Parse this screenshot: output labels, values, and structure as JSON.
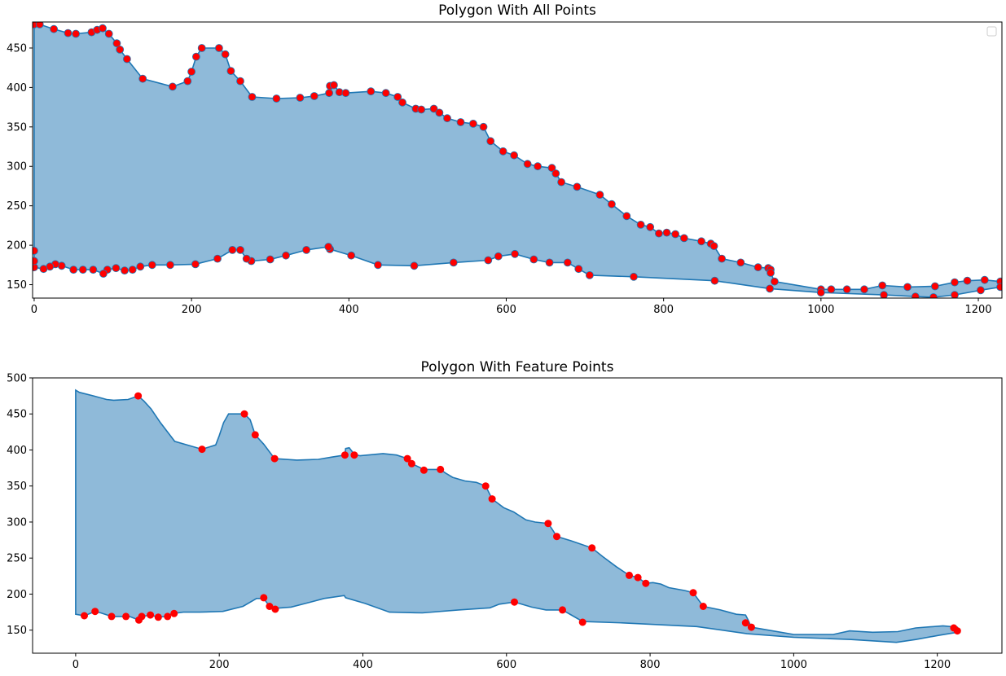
{
  "chart_data": [
    {
      "type": "area",
      "title": "Polygon With All Points",
      "xlabel": "",
      "ylabel": "",
      "xlim": [
        -2,
        1230
      ],
      "ylim": [
        133,
        483
      ],
      "xticks": [
        0,
        200,
        400,
        600,
        800,
        1000,
        1200
      ],
      "yticks": [
        150,
        200,
        250,
        300,
        350,
        400,
        450
      ],
      "legend": "top-right (empty)",
      "grid": false,
      "fill_color": "#8fbad9",
      "line_color": "#1f77b4",
      "marker_color": "#ff0000",
      "polygon": [
        [
          0,
          480
        ],
        [
          7,
          480
        ],
        [
          25,
          474
        ],
        [
          43,
          469
        ],
        [
          53,
          468
        ],
        [
          73,
          470
        ],
        [
          80,
          473
        ],
        [
          87,
          475
        ],
        [
          95,
          468
        ],
        [
          105,
          456
        ],
        [
          109,
          448
        ],
        [
          118,
          436
        ],
        [
          138,
          411
        ],
        [
          176,
          401
        ],
        [
          195,
          408
        ],
        [
          200,
          420
        ],
        [
          206,
          439
        ],
        [
          213,
          450
        ],
        [
          235,
          450
        ],
        [
          243,
          442
        ],
        [
          250,
          421
        ],
        [
          262,
          408
        ],
        [
          277,
          388
        ],
        [
          308,
          386
        ],
        [
          338,
          387
        ],
        [
          356,
          389
        ],
        [
          375,
          393
        ],
        [
          376,
          402
        ],
        [
          381,
          403
        ],
        [
          388,
          394
        ],
        [
          396,
          393
        ],
        [
          428,
          395
        ],
        [
          447,
          393
        ],
        [
          462,
          388
        ],
        [
          468,
          381
        ],
        [
          485,
          373
        ],
        [
          492,
          372
        ],
        [
          508,
          373
        ],
        [
          515,
          368
        ],
        [
          525,
          361
        ],
        [
          542,
          356
        ],
        [
          558,
          354
        ],
        [
          571,
          350
        ],
        [
          580,
          332
        ],
        [
          596,
          319
        ],
        [
          610,
          314
        ],
        [
          627,
          303
        ],
        [
          640,
          300
        ],
        [
          658,
          298
        ],
        [
          663,
          291
        ],
        [
          670,
          280
        ],
        [
          690,
          274
        ],
        [
          719,
          264
        ],
        [
          734,
          252
        ],
        [
          753,
          237
        ],
        [
          771,
          226
        ],
        [
          783,
          223
        ],
        [
          794,
          215
        ],
        [
          804,
          216
        ],
        [
          815,
          214
        ],
        [
          826,
          209
        ],
        [
          848,
          205
        ],
        [
          860,
          202
        ],
        [
          864,
          199
        ],
        [
          874,
          183
        ],
        [
          898,
          178
        ],
        [
          920,
          172
        ],
        [
          933,
          171
        ],
        [
          936,
          169
        ],
        [
          936,
          165
        ],
        [
          941,
          154
        ],
        [
          1000,
          144
        ],
        [
          1013,
          144
        ],
        [
          1033,
          144
        ],
        [
          1055,
          144
        ],
        [
          1078,
          149
        ],
        [
          1110,
          147
        ],
        [
          1145,
          148
        ],
        [
          1170,
          153
        ],
        [
          1186,
          155
        ],
        [
          1208,
          156
        ],
        [
          1228,
          154
        ],
        [
          1228,
          147
        ],
        [
          1203,
          143
        ],
        [
          1170,
          137
        ],
        [
          1143,
          134
        ],
        [
          1120,
          135
        ],
        [
          1080,
          137
        ],
        [
          1000,
          140
        ],
        [
          935,
          145
        ],
        [
          865,
          155
        ],
        [
          762,
          160
        ],
        [
          706,
          162
        ],
        [
          692,
          170
        ],
        [
          678,
          178
        ],
        [
          655,
          178
        ],
        [
          635,
          182
        ],
        [
          611,
          189
        ],
        [
          590,
          186
        ],
        [
          577,
          181
        ],
        [
          533,
          178
        ],
        [
          483,
          174
        ],
        [
          437,
          175
        ],
        [
          403,
          187
        ],
        [
          376,
          195
        ],
        [
          374,
          198
        ],
        [
          346,
          194
        ],
        [
          320,
          187
        ],
        [
          300,
          182
        ],
        [
          276,
          180
        ],
        [
          270,
          183
        ],
        [
          262,
          194
        ],
        [
          252,
          194
        ],
        [
          233,
          183
        ],
        [
          205,
          176
        ],
        [
          173,
          175
        ],
        [
          150,
          175
        ],
        [
          135,
          173
        ],
        [
          125,
          169
        ],
        [
          115,
          168
        ],
        [
          104,
          171
        ],
        [
          93,
          169
        ],
        [
          88,
          164
        ],
        [
          75,
          169
        ],
        [
          62,
          169
        ],
        [
          50,
          169
        ],
        [
          35,
          174
        ],
        [
          27,
          176
        ],
        [
          20,
          173
        ],
        [
          12,
          170
        ],
        [
          0,
          172
        ],
        [
          0,
          180
        ],
        [
          0,
          193
        ]
      ]
    },
    {
      "type": "area",
      "title": "Polygon With Feature Points",
      "xlabel": "",
      "ylabel": "",
      "xlim": [
        -60,
        1290
      ],
      "ylim": [
        118,
        500
      ],
      "xticks": [
        0,
        200,
        400,
        600,
        800,
        1000,
        1200
      ],
      "yticks": [
        150,
        200,
        250,
        300,
        350,
        400,
        450,
        500
      ],
      "grid": false,
      "fill_color": "#8fbad9",
      "line_color": "#1f77b4",
      "marker_color": "#ff0000",
      "polygon": [
        [
          0,
          483
        ],
        [
          5,
          480
        ],
        [
          25,
          475
        ],
        [
          43,
          470
        ],
        [
          53,
          469
        ],
        [
          73,
          470
        ],
        [
          87,
          475
        ],
        [
          95,
          468
        ],
        [
          105,
          457
        ],
        [
          118,
          438
        ],
        [
          138,
          412
        ],
        [
          176,
          401
        ],
        [
          195,
          407
        ],
        [
          200,
          420
        ],
        [
          206,
          438
        ],
        [
          213,
          450
        ],
        [
          235,
          450
        ],
        [
          243,
          442
        ],
        [
          250,
          421
        ],
        [
          262,
          408
        ],
        [
          277,
          388
        ],
        [
          308,
          386
        ],
        [
          338,
          387
        ],
        [
          356,
          390
        ],
        [
          375,
          393
        ],
        [
          376,
          402
        ],
        [
          381,
          403
        ],
        [
          388,
          394
        ],
        [
          396,
          392
        ],
        [
          428,
          395
        ],
        [
          447,
          393
        ],
        [
          462,
          388
        ],
        [
          468,
          381
        ],
        [
          485,
          373
        ],
        [
          508,
          373
        ],
        [
          515,
          368
        ],
        [
          525,
          362
        ],
        [
          542,
          357
        ],
        [
          558,
          355
        ],
        [
          571,
          350
        ],
        [
          580,
          332
        ],
        [
          596,
          320
        ],
        [
          610,
          314
        ],
        [
          627,
          303
        ],
        [
          640,
          300
        ],
        [
          658,
          298
        ],
        [
          663,
          291
        ],
        [
          670,
          280
        ],
        [
          690,
          274
        ],
        [
          719,
          264
        ],
        [
          734,
          252
        ],
        [
          753,
          238
        ],
        [
          771,
          226
        ],
        [
          783,
          223
        ],
        [
          794,
          215
        ],
        [
          804,
          216
        ],
        [
          815,
          214
        ],
        [
          826,
          209
        ],
        [
          848,
          205
        ],
        [
          860,
          202
        ],
        [
          874,
          183
        ],
        [
          898,
          178
        ],
        [
          920,
          172
        ],
        [
          933,
          171
        ],
        [
          936,
          165
        ],
        [
          941,
          154
        ],
        [
          1000,
          144
        ],
        [
          1055,
          144
        ],
        [
          1078,
          149
        ],
        [
          1110,
          147
        ],
        [
          1145,
          148
        ],
        [
          1170,
          153
        ],
        [
          1208,
          156
        ],
        [
          1228,
          154
        ],
        [
          1228,
          147
        ],
        [
          1203,
          143
        ],
        [
          1170,
          137
        ],
        [
          1143,
          133
        ],
        [
          1080,
          137
        ],
        [
          1000,
          140
        ],
        [
          935,
          145
        ],
        [
          865,
          155
        ],
        [
          762,
          160
        ],
        [
          706,
          162
        ],
        [
          692,
          170
        ],
        [
          678,
          178
        ],
        [
          655,
          178
        ],
        [
          635,
          182
        ],
        [
          611,
          189
        ],
        [
          590,
          186
        ],
        [
          577,
          181
        ],
        [
          533,
          178
        ],
        [
          483,
          174
        ],
        [
          437,
          175
        ],
        [
          403,
          187
        ],
        [
          376,
          195
        ],
        [
          374,
          198
        ],
        [
          346,
          194
        ],
        [
          320,
          187
        ],
        [
          300,
          182
        ],
        [
          276,
          180
        ],
        [
          270,
          183
        ],
        [
          262,
          194
        ],
        [
          252,
          194
        ],
        [
          233,
          183
        ],
        [
          205,
          176
        ],
        [
          173,
          175
        ],
        [
          150,
          175
        ],
        [
          135,
          173
        ],
        [
          125,
          169
        ],
        [
          115,
          168
        ],
        [
          104,
          171
        ],
        [
          93,
          169
        ],
        [
          88,
          164
        ],
        [
          75,
          169
        ],
        [
          62,
          169
        ],
        [
          50,
          169
        ],
        [
          35,
          174
        ],
        [
          27,
          176
        ],
        [
          20,
          173
        ],
        [
          12,
          170
        ],
        [
          0,
          172
        ],
        [
          0,
          180
        ]
      ],
      "points": [
        [
          87,
          475
        ],
        [
          176,
          401
        ],
        [
          235,
          450
        ],
        [
          250,
          421
        ],
        [
          277,
          388
        ],
        [
          375,
          393
        ],
        [
          388,
          393
        ],
        [
          462,
          388
        ],
        [
          468,
          381
        ],
        [
          485,
          372
        ],
        [
          508,
          373
        ],
        [
          571,
          350
        ],
        [
          580,
          332
        ],
        [
          658,
          298
        ],
        [
          670,
          280
        ],
        [
          719,
          264
        ],
        [
          771,
          226
        ],
        [
          783,
          223
        ],
        [
          794,
          215
        ],
        [
          860,
          202
        ],
        [
          874,
          183
        ],
        [
          933,
          160
        ],
        [
          941,
          154
        ],
        [
          1223,
          153
        ],
        [
          1228,
          149
        ],
        [
          12,
          170
        ],
        [
          27,
          176
        ],
        [
          50,
          169
        ],
        [
          70,
          169
        ],
        [
          88,
          164
        ],
        [
          92,
          169
        ],
        [
          104,
          171
        ],
        [
          115,
          168
        ],
        [
          128,
          169
        ],
        [
          137,
          173
        ],
        [
          262,
          195
        ],
        [
          270,
          183
        ],
        [
          278,
          179
        ],
        [
          611,
          189
        ],
        [
          678,
          178
        ],
        [
          706,
          161
        ]
      ]
    }
  ]
}
